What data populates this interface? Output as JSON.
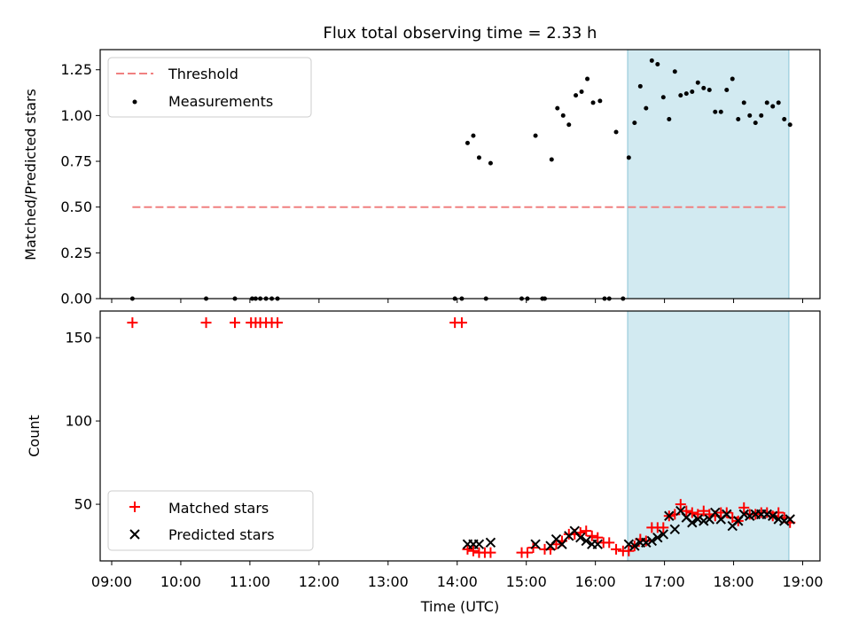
{
  "title": "Flux total observing time = 2.33 h",
  "colors": {
    "threshold": "#f08080",
    "measurement": "#000000",
    "matched": "#ff0000",
    "predicted": "#000000",
    "shade": "#add8e6"
  },
  "chart_data": [
    {
      "type": "scatter",
      "panel": "top",
      "ylabel": "Matched/Predicted stars",
      "xlabel": "",
      "xlim": [
        "08:50",
        "19:15"
      ],
      "ylim": [
        0,
        1.36
      ],
      "yticks": [
        "0.00",
        "0.25",
        "0.50",
        "0.75",
        "1.00",
        "1.25"
      ],
      "grid": false,
      "legend_position": "upper left",
      "shaded_span": [
        "16:28",
        "18:48"
      ],
      "threshold": {
        "name": "Threshold",
        "y": 0.5,
        "x_range": [
          "09:18",
          "18:48"
        ]
      },
      "series": [
        {
          "name": "Measurements",
          "points": [
            [
              "09:18",
              0
            ],
            [
              "10:22",
              0
            ],
            [
              "10:47",
              0
            ],
            [
              "11:02",
              0
            ],
            [
              "11:05",
              0
            ],
            [
              "11:09",
              0
            ],
            [
              "11:14",
              0
            ],
            [
              "11:19",
              0
            ],
            [
              "11:24",
              0
            ],
            [
              "13:58",
              0
            ],
            [
              "14:04",
              0
            ],
            [
              "14:25",
              0
            ],
            [
              "14:56",
              0
            ],
            [
              "15:01",
              0
            ],
            [
              "15:14",
              0
            ],
            [
              "15:16",
              0
            ],
            [
              "14:09",
              0.85
            ],
            [
              "14:14",
              0.89
            ],
            [
              "14:19",
              0.77
            ],
            [
              "14:29",
              0.74
            ],
            [
              "15:08",
              0.89
            ],
            [
              "15:22",
              0.76
            ],
            [
              "15:27",
              1.04
            ],
            [
              "15:32",
              1.0
            ],
            [
              "15:37",
              0.95
            ],
            [
              "15:43",
              1.11
            ],
            [
              "15:48",
              1.13
            ],
            [
              "15:53",
              1.2
            ],
            [
              "15:58",
              1.07
            ],
            [
              "16:04",
              1.08
            ],
            [
              "16:08",
              0
            ],
            [
              "16:12",
              0
            ],
            [
              "16:18",
              0.91
            ],
            [
              "16:24",
              0
            ],
            [
              "16:29",
              0.77
            ],
            [
              "16:34",
              0.96
            ],
            [
              "16:39",
              1.16
            ],
            [
              "16:44",
              1.04
            ],
            [
              "16:49",
              1.3
            ],
            [
              "16:54",
              1.28
            ],
            [
              "16:59",
              1.1
            ],
            [
              "17:04",
              0.98
            ],
            [
              "17:09",
              1.24
            ],
            [
              "17:14",
              1.11
            ],
            [
              "17:19",
              1.12
            ],
            [
              "17:24",
              1.13
            ],
            [
              "17:29",
              1.18
            ],
            [
              "17:34",
              1.15
            ],
            [
              "17:39",
              1.14
            ],
            [
              "17:44",
              1.02
            ],
            [
              "17:49",
              1.02
            ],
            [
              "17:54",
              1.14
            ],
            [
              "17:59",
              1.2
            ],
            [
              "18:04",
              0.98
            ],
            [
              "18:09",
              1.07
            ],
            [
              "18:14",
              1.0
            ],
            [
              "18:19",
              0.96
            ],
            [
              "18:24",
              1.0
            ],
            [
              "18:29",
              1.07
            ],
            [
              "18:34",
              1.05
            ],
            [
              "18:39",
              1.07
            ],
            [
              "18:44",
              0.98
            ],
            [
              "18:49",
              0.95
            ]
          ]
        }
      ]
    },
    {
      "type": "scatter",
      "panel": "bottom",
      "ylabel": "Count",
      "xlabel": "Time (UTC)",
      "xlim": [
        "08:50",
        "19:15"
      ],
      "xticks": [
        "09:00",
        "10:00",
        "11:00",
        "12:00",
        "13:00",
        "14:00",
        "15:00",
        "16:00",
        "17:00",
        "18:00",
        "19:00"
      ],
      "ylim": [
        16,
        166
      ],
      "yticks": [
        "50",
        "100",
        "150"
      ],
      "grid": false,
      "legend_position": "lower left",
      "shaded_span": [
        "16:28",
        "18:48"
      ],
      "series": [
        {
          "name": "Matched stars",
          "marker": "plus",
          "points": [
            [
              "09:18",
              159
            ],
            [
              "10:22",
              159
            ],
            [
              "10:47",
              159
            ],
            [
              "11:01",
              159
            ],
            [
              "11:05",
              159
            ],
            [
              "11:09",
              159
            ],
            [
              "11:14",
              159
            ],
            [
              "11:19",
              159
            ],
            [
              "11:24",
              159
            ],
            [
              "13:58",
              159
            ],
            [
              "14:04",
              159
            ],
            [
              "14:09",
              23
            ],
            [
              "14:14",
              22
            ],
            [
              "14:19",
              21
            ],
            [
              "14:24",
              21
            ],
            [
              "14:29",
              21
            ],
            [
              "14:56",
              21
            ],
            [
              "15:01",
              21
            ],
            [
              "15:06",
              24
            ],
            [
              "15:16",
              23
            ],
            [
              "15:21",
              23
            ],
            [
              "15:26",
              26
            ],
            [
              "15:31",
              28
            ],
            [
              "15:37",
              32
            ],
            [
              "15:42",
              32
            ],
            [
              "15:47",
              33
            ],
            [
              "15:52",
              34
            ],
            [
              "15:57",
              31
            ],
            [
              "16:02",
              30
            ],
            [
              "16:07",
              27
            ],
            [
              "16:12",
              27
            ],
            [
              "16:18",
              23
            ],
            [
              "16:24",
              22
            ],
            [
              "16:29",
              22
            ],
            [
              "16:34",
              25
            ],
            [
              "16:39",
              29
            ],
            [
              "16:44",
              28
            ],
            [
              "16:49",
              36
            ],
            [
              "16:54",
              36
            ],
            [
              "16:59",
              36
            ],
            [
              "17:04",
              43
            ],
            [
              "17:09",
              44
            ],
            [
              "17:14",
              50
            ],
            [
              "17:19",
              46
            ],
            [
              "17:24",
              45
            ],
            [
              "17:29",
              44
            ],
            [
              "17:34",
              46
            ],
            [
              "17:39",
              44
            ],
            [
              "17:44",
              43
            ],
            [
              "17:49",
              45
            ],
            [
              "17:54",
              45
            ],
            [
              "17:59",
              42
            ],
            [
              "18:04",
              40
            ],
            [
              "18:09",
              48
            ],
            [
              "18:14",
              44
            ],
            [
              "18:19",
              44
            ],
            [
              "18:24",
              45
            ],
            [
              "18:29",
              45
            ],
            [
              "18:34",
              43
            ],
            [
              "18:39",
              45
            ],
            [
              "18:44",
              42
            ],
            [
              "18:49",
              39
            ]
          ]
        },
        {
          "name": "Predicted stars",
          "marker": "x",
          "points": [
            [
              "14:09",
              26
            ],
            [
              "14:14",
              26
            ],
            [
              "14:19",
              26
            ],
            [
              "14:29",
              27
            ],
            [
              "15:08",
              26
            ],
            [
              "15:21",
              25
            ],
            [
              "15:26",
              29
            ],
            [
              "15:31",
              26
            ],
            [
              "15:37",
              31
            ],
            [
              "15:42",
              34
            ],
            [
              "15:47",
              30
            ],
            [
              "15:52",
              28
            ],
            [
              "15:57",
              26
            ],
            [
              "16:02",
              26
            ],
            [
              "16:29",
              26
            ],
            [
              "16:34",
              25
            ],
            [
              "16:39",
              27
            ],
            [
              "16:44",
              27
            ],
            [
              "16:49",
              28
            ],
            [
              "16:54",
              30
            ],
            [
              "16:59",
              32
            ],
            [
              "17:04",
              43
            ],
            [
              "17:09",
              35
            ],
            [
              "17:14",
              46
            ],
            [
              "17:19",
              42
            ],
            [
              "17:24",
              39
            ],
            [
              "17:29",
              41
            ],
            [
              "17:34",
              40
            ],
            [
              "17:39",
              41
            ],
            [
              "17:44",
              45
            ],
            [
              "17:49",
              41
            ],
            [
              "17:54",
              44
            ],
            [
              "17:59",
              37
            ],
            [
              "18:04",
              40
            ],
            [
              "18:09",
              44
            ],
            [
              "18:14",
              43
            ],
            [
              "18:19",
              44
            ],
            [
              "18:24",
              44
            ],
            [
              "18:29",
              44
            ],
            [
              "18:34",
              43
            ],
            [
              "18:39",
              41
            ],
            [
              "18:44",
              40
            ],
            [
              "18:49",
              41
            ]
          ]
        }
      ]
    }
  ]
}
